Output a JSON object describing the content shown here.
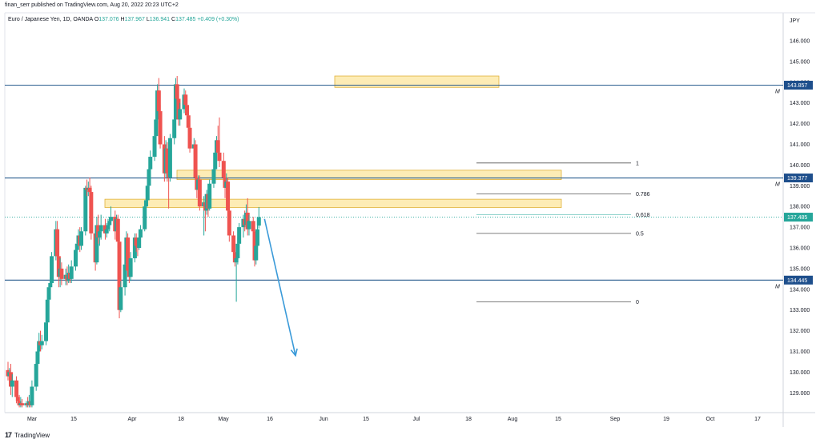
{
  "header": {
    "publisher": "finan_serr published on TradingView.com, Aug 20, 2022 20:23 UTC+2"
  },
  "legend": {
    "symbol": "Euro / Japanese Yen, 1D, OANDA",
    "open_label": "O",
    "open": "137.076",
    "high_label": "H",
    "high": "137.967",
    "low_label": "L",
    "low": "136.941",
    "close_label": "C",
    "close": "137.485",
    "change": "+0.409 (+0.30%)"
  },
  "currency": "JPY",
  "footer": {
    "brand": "TradingView",
    "logo": "17"
  },
  "colors": {
    "up": "#26a69a",
    "down": "#ef5350",
    "level": "#2a5d8f",
    "zone_fill": "#fde9a8",
    "zone_border": "#e0b23a",
    "arrow": "#3a9ad9"
  },
  "chart_data": {
    "type": "candlestick",
    "y_axis": {
      "ylim": [
        128.3,
        146.7
      ],
      "ticks": [
        "146.000",
        "145.000",
        "144.000",
        "143.000",
        "142.000",
        "141.000",
        "140.000",
        "139.000",
        "138.000",
        "137.000",
        "136.000",
        "135.000",
        "134.000",
        "133.000",
        "132.000",
        "131.000",
        "130.000",
        "129.000"
      ]
    },
    "x_axis": {
      "labels": [
        "Mar",
        "15",
        "Apr",
        "18",
        "May",
        "16",
        "Jun",
        "15",
        "Jul",
        "18",
        "Aug",
        "15",
        "Sep",
        "19",
        "Oct",
        "17"
      ]
    },
    "price_tags": [
      {
        "label": "143.857",
        "value": 143.857,
        "color": "#1e4f8c"
      },
      {
        "label": "139.377",
        "value": 139.377,
        "color": "#1e4f8c"
      },
      {
        "label": "137.485",
        "value": 137.485,
        "color": "#26a69a"
      },
      {
        "label": "134.445",
        "value": 134.445,
        "color": "#1e4f8c"
      }
    ],
    "horizontal_levels": [
      143.857,
      139.377,
      134.445
    ],
    "level_marker": "M",
    "zones": [
      {
        "from": 143.75,
        "to": 144.3
      },
      {
        "from": 139.3,
        "to": 139.75
      },
      {
        "from": 137.95,
        "to": 138.35
      }
    ],
    "fibonacci": [
      {
        "label": "1",
        "value": 140.1
      },
      {
        "label": "0.786",
        "value": 138.6
      },
      {
        "label": "0.618",
        "value": 137.6
      },
      {
        "label": "0.5",
        "value": 136.7
      },
      {
        "label": "0",
        "value": 133.4
      }
    ],
    "candles": [
      {
        "date": "2022-02-22",
        "o": 130.1,
        "h": 130.5,
        "l": 129.6,
        "c": 129.8
      },
      {
        "date": "2022-02-23",
        "o": 129.8,
        "h": 130.2,
        "l": 129.4,
        "c": 130.0
      },
      {
        "date": "2022-02-24",
        "o": 130.0,
        "h": 130.4,
        "l": 128.9,
        "c": 129.3
      },
      {
        "date": "2022-02-25",
        "o": 129.3,
        "h": 129.9,
        "l": 128.8,
        "c": 129.6
      },
      {
        "date": "2022-02-28",
        "o": 129.6,
        "h": 129.8,
        "l": 128.5,
        "c": 128.8
      },
      {
        "date": "2022-03-01",
        "o": 128.8,
        "h": 129.3,
        "l": 128.4,
        "c": 128.6
      },
      {
        "date": "2022-03-02",
        "o": 128.6,
        "h": 128.9,
        "l": 128.3,
        "c": 128.4
      },
      {
        "date": "2022-03-03",
        "o": 128.4,
        "h": 128.8,
        "l": 128.3,
        "c": 128.5
      },
      {
        "date": "2022-03-04",
        "o": 128.5,
        "h": 128.7,
        "l": 128.3,
        "c": 128.4
      },
      {
        "date": "2022-03-07",
        "o": 128.4,
        "h": 128.6,
        "l": 128.3,
        "c": 128.5
      },
      {
        "date": "2022-03-08",
        "o": 128.5,
        "h": 128.8,
        "l": 128.3,
        "c": 128.4
      },
      {
        "date": "2022-03-09",
        "o": 128.4,
        "h": 128.9,
        "l": 128.3,
        "c": 128.6
      },
      {
        "date": "2022-03-10",
        "o": 128.6,
        "h": 128.8,
        "l": 128.3,
        "c": 128.4
      },
      {
        "date": "2022-03-11",
        "o": 128.4,
        "h": 129.6,
        "l": 128.3,
        "c": 129.3
      },
      {
        "date": "2022-03-14",
        "o": 129.3,
        "h": 130.6,
        "l": 129.1,
        "c": 130.4
      },
      {
        "date": "2022-03-15",
        "o": 130.4,
        "h": 131.2,
        "l": 130.0,
        "c": 131.0
      },
      {
        "date": "2022-03-16",
        "o": 131.0,
        "h": 131.9,
        "l": 130.8,
        "c": 131.5
      },
      {
        "date": "2022-03-17",
        "o": 131.5,
        "h": 132.0,
        "l": 131.0,
        "c": 131.3
      },
      {
        "date": "2022-03-18",
        "o": 131.3,
        "h": 131.8,
        "l": 131.1,
        "c": 131.5
      },
      {
        "date": "2022-03-21",
        "o": 131.5,
        "h": 132.6,
        "l": 131.3,
        "c": 132.4
      },
      {
        "date": "2022-03-22",
        "o": 132.4,
        "h": 133.7,
        "l": 132.2,
        "c": 133.5
      },
      {
        "date": "2022-03-23",
        "o": 133.5,
        "h": 134.3,
        "l": 133.0,
        "c": 134.1
      },
      {
        "date": "2022-03-24",
        "o": 134.1,
        "h": 134.6,
        "l": 133.7,
        "c": 134.3
      },
      {
        "date": "2022-03-25",
        "o": 134.3,
        "h": 135.8,
        "l": 134.2,
        "c": 135.6
      },
      {
        "date": "2022-03-28",
        "o": 135.6,
        "h": 137.3,
        "l": 135.4,
        "c": 136.9
      },
      {
        "date": "2022-03-29",
        "o": 136.9,
        "h": 137.3,
        "l": 135.2,
        "c": 135.6
      },
      {
        "date": "2022-03-30",
        "o": 135.6,
        "h": 136.0,
        "l": 134.1,
        "c": 134.6
      },
      {
        "date": "2022-03-31",
        "o": 134.6,
        "h": 135.5,
        "l": 134.1,
        "c": 135.0
      },
      {
        "date": "2022-04-01",
        "o": 135.0,
        "h": 135.3,
        "l": 134.2,
        "c": 134.5
      },
      {
        "date": "2022-04-04",
        "o": 134.5,
        "h": 135.0,
        "l": 134.2,
        "c": 134.7
      },
      {
        "date": "2022-04-05",
        "o": 134.7,
        "h": 135.1,
        "l": 134.2,
        "c": 134.4
      },
      {
        "date": "2022-04-06",
        "o": 134.4,
        "h": 135.2,
        "l": 134.3,
        "c": 134.8
      },
      {
        "date": "2022-04-07",
        "o": 134.8,
        "h": 135.1,
        "l": 134.3,
        "c": 134.5
      },
      {
        "date": "2022-04-08",
        "o": 134.5,
        "h": 135.4,
        "l": 134.3,
        "c": 135.1
      },
      {
        "date": "2022-04-11",
        "o": 135.1,
        "h": 136.2,
        "l": 134.9,
        "c": 135.9
      },
      {
        "date": "2022-04-12",
        "o": 135.9,
        "h": 136.4,
        "l": 135.4,
        "c": 136.2
      },
      {
        "date": "2022-04-13",
        "o": 136.2,
        "h": 136.9,
        "l": 135.9,
        "c": 136.6
      },
      {
        "date": "2022-04-14",
        "o": 136.6,
        "h": 137.0,
        "l": 135.8,
        "c": 136.1
      },
      {
        "date": "2022-04-15",
        "o": 136.1,
        "h": 137.0,
        "l": 135.9,
        "c": 136.8
      },
      {
        "date": "2022-04-18",
        "o": 136.8,
        "h": 139.0,
        "l": 136.6,
        "c": 138.9
      },
      {
        "date": "2022-04-19",
        "o": 138.9,
        "h": 139.3,
        "l": 138.5,
        "c": 138.8
      },
      {
        "date": "2022-04-20",
        "o": 138.8,
        "h": 139.2,
        "l": 138.5,
        "c": 138.9
      },
      {
        "date": "2022-04-21",
        "o": 138.9,
        "h": 139.4,
        "l": 138.4,
        "c": 138.7
      },
      {
        "date": "2022-04-22",
        "o": 138.7,
        "h": 139.0,
        "l": 136.4,
        "c": 136.7
      },
      {
        "date": "2022-04-25",
        "o": 136.7,
        "h": 137.0,
        "l": 134.9,
        "c": 135.3
      },
      {
        "date": "2022-04-26",
        "o": 135.3,
        "h": 137.5,
        "l": 135.2,
        "c": 137.1
      },
      {
        "date": "2022-04-27",
        "o": 137.1,
        "h": 137.6,
        "l": 136.2,
        "c": 136.5
      },
      {
        "date": "2022-04-28",
        "o": 136.5,
        "h": 137.0,
        "l": 136.1,
        "c": 136.8
      },
      {
        "date": "2022-04-29",
        "o": 136.8,
        "h": 137.6,
        "l": 136.4,
        "c": 137.1
      },
      {
        "date": "2022-05-02",
        "o": 137.1,
        "h": 137.4,
        "l": 136.4,
        "c": 136.7
      },
      {
        "date": "2022-05-03",
        "o": 136.7,
        "h": 137.2,
        "l": 136.5,
        "c": 136.9
      },
      {
        "date": "2022-05-04",
        "o": 136.9,
        "h": 137.4,
        "l": 136.7,
        "c": 137.1
      },
      {
        "date": "2022-05-05",
        "o": 137.1,
        "h": 137.5,
        "l": 136.8,
        "c": 137.3
      },
      {
        "date": "2022-05-06",
        "o": 137.3,
        "h": 138.0,
        "l": 137.1,
        "c": 137.5
      },
      {
        "date": "2022-05-09",
        "o": 137.5,
        "h": 137.8,
        "l": 136.4,
        "c": 136.8
      },
      {
        "date": "2022-05-10",
        "o": 136.8,
        "h": 137.6,
        "l": 136.5,
        "c": 137.4
      },
      {
        "date": "2022-05-11",
        "o": 137.4,
        "h": 137.6,
        "l": 136.0,
        "c": 136.3
      },
      {
        "date": "2022-05-12",
        "o": 136.3,
        "h": 136.5,
        "l": 132.6,
        "c": 133.0
      },
      {
        "date": "2022-05-13",
        "o": 133.0,
        "h": 134.4,
        "l": 132.9,
        "c": 134.1
      },
      {
        "date": "2022-05-16",
        "o": 134.1,
        "h": 135.5,
        "l": 133.7,
        "c": 135.2
      },
      {
        "date": "2022-05-17",
        "o": 135.2,
        "h": 136.8,
        "l": 135.0,
        "c": 136.5
      },
      {
        "date": "2022-05-18",
        "o": 136.5,
        "h": 136.7,
        "l": 134.6,
        "c": 134.9
      },
      {
        "date": "2022-05-19",
        "o": 134.9,
        "h": 135.3,
        "l": 134.3,
        "c": 134.6
      },
      {
        "date": "2022-05-20",
        "o": 134.6,
        "h": 135.8,
        "l": 134.4,
        "c": 135.5
      },
      {
        "date": "2022-05-23",
        "o": 135.5,
        "h": 136.7,
        "l": 135.3,
        "c": 136.5
      },
      {
        "date": "2022-05-24",
        "o": 136.5,
        "h": 136.7,
        "l": 135.8,
        "c": 136.1
      },
      {
        "date": "2022-05-25",
        "o": 136.1,
        "h": 136.5,
        "l": 135.6,
        "c": 136.0
      },
      {
        "date": "2022-05-26",
        "o": 136.0,
        "h": 136.7,
        "l": 135.9,
        "c": 136.5
      },
      {
        "date": "2022-05-27",
        "o": 136.5,
        "h": 137.1,
        "l": 136.3,
        "c": 136.9
      },
      {
        "date": "2022-05-30",
        "o": 136.9,
        "h": 138.3,
        "l": 136.8,
        "c": 138.0
      },
      {
        "date": "2022-05-31",
        "o": 138.0,
        "h": 138.6,
        "l": 137.8,
        "c": 138.3
      },
      {
        "date": "2022-06-01",
        "o": 138.3,
        "h": 139.2,
        "l": 138.1,
        "c": 139.0
      },
      {
        "date": "2022-06-02",
        "o": 139.0,
        "h": 140.0,
        "l": 138.8,
        "c": 139.8
      },
      {
        "date": "2022-06-03",
        "o": 139.8,
        "h": 140.7,
        "l": 139.6,
        "c": 140.4
      },
      {
        "date": "2022-06-06",
        "o": 140.4,
        "h": 141.6,
        "l": 140.2,
        "c": 141.4
      },
      {
        "date": "2022-06-07",
        "o": 141.4,
        "h": 142.5,
        "l": 141.2,
        "c": 142.2
      },
      {
        "date": "2022-06-08",
        "o": 142.2,
        "h": 143.9,
        "l": 142.0,
        "c": 143.6
      },
      {
        "date": "2022-06-09",
        "o": 143.6,
        "h": 144.2,
        "l": 142.3,
        "c": 142.6
      },
      {
        "date": "2022-06-10",
        "o": 142.6,
        "h": 142.9,
        "l": 140.8,
        "c": 141.0
      },
      {
        "date": "2022-06-13",
        "o": 141.0,
        "h": 141.4,
        "l": 139.2,
        "c": 139.6
      },
      {
        "date": "2022-06-14",
        "o": 139.6,
        "h": 141.2,
        "l": 139.4,
        "c": 140.8
      },
      {
        "date": "2022-06-15",
        "o": 140.8,
        "h": 141.1,
        "l": 139.2,
        "c": 139.6
      },
      {
        "date": "2022-06-16",
        "o": 139.6,
        "h": 139.9,
        "l": 137.9,
        "c": 139.4
      },
      {
        "date": "2022-06-17",
        "o": 139.4,
        "h": 141.5,
        "l": 139.2,
        "c": 141.3
      },
      {
        "date": "2022-06-20",
        "o": 141.3,
        "h": 142.5,
        "l": 141.0,
        "c": 142.2
      },
      {
        "date": "2022-06-21",
        "o": 142.2,
        "h": 144.2,
        "l": 142.0,
        "c": 143.9
      },
      {
        "date": "2022-06-22",
        "o": 143.9,
        "h": 144.3,
        "l": 142.9,
        "c": 143.2
      },
      {
        "date": "2022-06-23",
        "o": 143.2,
        "h": 143.5,
        "l": 141.9,
        "c": 142.2
      },
      {
        "date": "2022-06-24",
        "o": 142.2,
        "h": 143.0,
        "l": 141.9,
        "c": 142.7
      },
      {
        "date": "2022-06-27",
        "o": 142.7,
        "h": 143.7,
        "l": 142.5,
        "c": 143.4
      },
      {
        "date": "2022-06-28",
        "o": 143.4,
        "h": 143.6,
        "l": 142.7,
        "c": 142.9
      },
      {
        "date": "2022-06-29",
        "o": 142.9,
        "h": 143.2,
        "l": 142.2,
        "c": 142.4
      },
      {
        "date": "2022-06-30",
        "o": 142.4,
        "h": 142.6,
        "l": 141.6,
        "c": 141.8
      },
      {
        "date": "2022-07-01",
        "o": 141.8,
        "h": 142.0,
        "l": 140.6,
        "c": 140.8
      },
      {
        "date": "2022-07-04",
        "o": 140.8,
        "h": 141.3,
        "l": 140.5,
        "c": 141.0
      },
      {
        "date": "2022-07-05",
        "o": 141.0,
        "h": 141.2,
        "l": 139.2,
        "c": 139.4
      },
      {
        "date": "2022-07-06",
        "o": 139.4,
        "h": 139.7,
        "l": 138.4,
        "c": 138.8
      },
      {
        "date": "2022-07-07",
        "o": 138.8,
        "h": 139.5,
        "l": 138.6,
        "c": 139.3
      },
      {
        "date": "2022-07-08",
        "o": 139.3,
        "h": 139.5,
        "l": 137.8,
        "c": 138.0
      },
      {
        "date": "2022-07-11",
        "o": 138.0,
        "h": 138.5,
        "l": 136.6,
        "c": 138.2
      },
      {
        "date": "2022-07-12",
        "o": 138.2,
        "h": 138.3,
        "l": 136.8,
        "c": 137.8
      },
      {
        "date": "2022-07-13",
        "o": 137.8,
        "h": 138.8,
        "l": 137.6,
        "c": 138.6
      },
      {
        "date": "2022-07-14",
        "o": 138.6,
        "h": 138.8,
        "l": 137.5,
        "c": 137.9
      },
      {
        "date": "2022-07-15",
        "o": 137.9,
        "h": 139.3,
        "l": 137.8,
        "c": 139.1
      },
      {
        "date": "2022-07-18",
        "o": 139.1,
        "h": 140.0,
        "l": 138.9,
        "c": 139.8
      },
      {
        "date": "2022-07-19",
        "o": 139.8,
        "h": 140.8,
        "l": 139.6,
        "c": 140.6
      },
      {
        "date": "2022-07-20",
        "o": 140.6,
        "h": 141.4,
        "l": 140.4,
        "c": 141.2
      },
      {
        "date": "2022-07-21",
        "o": 141.2,
        "h": 141.9,
        "l": 140.3,
        "c": 140.6
      },
      {
        "date": "2022-07-22",
        "o": 140.6,
        "h": 142.3,
        "l": 139.9,
        "c": 140.2
      },
      {
        "date": "2022-07-25",
        "o": 140.2,
        "h": 140.6,
        "l": 139.0,
        "c": 139.4
      },
      {
        "date": "2022-07-26",
        "o": 139.4,
        "h": 139.8,
        "l": 138.4,
        "c": 138.9
      },
      {
        "date": "2022-07-27",
        "o": 138.9,
        "h": 139.6,
        "l": 138.6,
        "c": 139.2
      },
      {
        "date": "2022-07-28",
        "o": 139.2,
        "h": 139.4,
        "l": 137.5,
        "c": 137.8
      },
      {
        "date": "2022-07-29",
        "o": 137.8,
        "h": 138.1,
        "l": 136.3,
        "c": 136.6
      },
      {
        "date": "2022-08-01",
        "o": 136.6,
        "h": 136.8,
        "l": 135.5,
        "c": 135.8
      },
      {
        "date": "2022-08-02",
        "o": 135.8,
        "h": 136.0,
        "l": 135.1,
        "c": 135.3
      },
      {
        "date": "2022-08-03",
        "o": 135.3,
        "h": 135.7,
        "l": 133.4,
        "c": 135.5
      },
      {
        "date": "2022-08-04",
        "o": 135.5,
        "h": 136.5,
        "l": 135.2,
        "c": 136.2
      },
      {
        "date": "2022-08-05",
        "o": 136.2,
        "h": 137.2,
        "l": 136.0,
        "c": 137.0
      },
      {
        "date": "2022-08-08",
        "o": 137.0,
        "h": 137.6,
        "l": 136.5,
        "c": 137.4
      },
      {
        "date": "2022-08-09",
        "o": 137.4,
        "h": 137.8,
        "l": 136.8,
        "c": 137.1
      },
      {
        "date": "2022-08-10",
        "o": 137.1,
        "h": 138.1,
        "l": 136.9,
        "c": 137.7
      },
      {
        "date": "2022-08-11",
        "o": 137.7,
        "h": 138.4,
        "l": 136.6,
        "c": 136.9
      },
      {
        "date": "2022-08-12",
        "o": 136.9,
        "h": 137.6,
        "l": 136.6,
        "c": 137.3
      },
      {
        "date": "2022-08-15",
        "o": 137.3,
        "h": 137.5,
        "l": 136.5,
        "c": 136.8
      },
      {
        "date": "2022-08-16",
        "o": 136.8,
        "h": 137.1,
        "l": 135.1,
        "c": 135.4
      },
      {
        "date": "2022-08-17",
        "o": 135.4,
        "h": 136.4,
        "l": 135.2,
        "c": 136.1
      },
      {
        "date": "2022-08-18",
        "o": 136.1,
        "h": 137.1,
        "l": 135.9,
        "c": 136.9
      },
      {
        "date": "2022-08-19",
        "o": 137.076,
        "h": 137.967,
        "l": 136.941,
        "c": 137.485
      }
    ],
    "projection": {
      "from_date": "2022-08-23",
      "from_value": 137.4,
      "to_date": "2022-09-14",
      "to_value": 130.8
    }
  }
}
